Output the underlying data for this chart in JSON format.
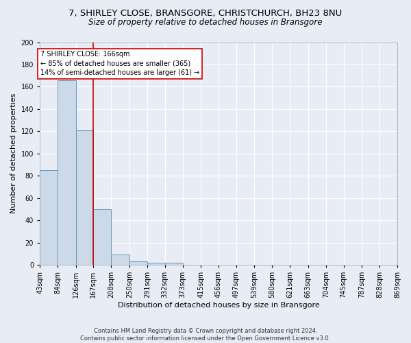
{
  "title1": "7, SHIRLEY CLOSE, BRANSGORE, CHRISTCHURCH, BH23 8NU",
  "title2": "Size of property relative to detached houses in Bransgore",
  "xlabel": "Distribution of detached houses by size in Bransgore",
  "ylabel": "Number of detached properties",
  "footer1": "Contains HM Land Registry data © Crown copyright and database right 2024.",
  "footer2": "Contains public sector information licensed under the Open Government Licence v3.0.",
  "bin_edges": [
    43,
    84,
    126,
    167,
    208,
    250,
    291,
    332,
    373,
    415,
    456,
    497,
    539,
    580,
    621,
    663,
    704,
    745,
    787,
    828,
    869
  ],
  "bar_heights": [
    85,
    166,
    121,
    50,
    9,
    3,
    2,
    2,
    0,
    0,
    0,
    0,
    0,
    0,
    0,
    0,
    0,
    0,
    0,
    0
  ],
  "bar_color": "#ccd9e8",
  "bar_edge_color": "#6699bb",
  "vline_x": 166,
  "vline_color": "#cc0000",
  "annotation_line1": "7 SHIRLEY CLOSE: 166sqm",
  "annotation_line2": "← 85% of detached houses are smaller (365)",
  "annotation_line3": "14% of semi-detached houses are larger (61) →",
  "annotation_box_color": "#ffffff",
  "annotation_edge_color": "#cc0000",
  "ylim": [
    0,
    200
  ],
  "yticks": [
    0,
    20,
    40,
    60,
    80,
    100,
    120,
    140,
    160,
    180,
    200
  ],
  "bg_color": "#e8edf5",
  "axes_bg_color": "#e8edf5",
  "grid_color": "#ffffff",
  "title1_fontsize": 9.5,
  "title2_fontsize": 8.5,
  "ylabel_fontsize": 8,
  "xlabel_fontsize": 8,
  "annotation_fontsize": 7,
  "footer_fontsize": 6,
  "tick_fontsize": 7
}
